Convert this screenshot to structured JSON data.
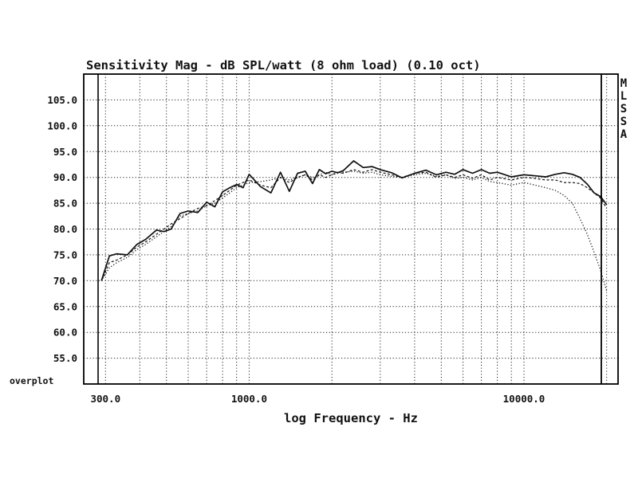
{
  "chart_data": {
    "type": "line",
    "title": "Sensitivity Mag - dB SPL/watt (8 ohm load) (0.10 oct)",
    "xlabel": "log Frequency - Hz",
    "ylabel": "",
    "x_scale": "log",
    "xlim": [
      250,
      22000
    ],
    "ylim": [
      50,
      110
    ],
    "x_ticks": [
      {
        "value": 300,
        "label": "300.0"
      },
      {
        "value": 1000,
        "label": "1000.0"
      },
      {
        "value": 10000,
        "label": "10000.0"
      }
    ],
    "x_grid": [
      300,
      400,
      500,
      600,
      700,
      800,
      900,
      1000,
      2000,
      3000,
      4000,
      5000,
      6000,
      7000,
      8000,
      9000,
      10000,
      20000
    ],
    "y_ticks": [
      {
        "value": 105,
        "label": "105.0"
      },
      {
        "value": 100,
        "label": "100.0"
      },
      {
        "value": 95,
        "label": "95.0"
      },
      {
        "value": 90,
        "label": "90.0"
      },
      {
        "value": 85,
        "label": "85.0"
      },
      {
        "value": 80,
        "label": "80.0"
      },
      {
        "value": 75,
        "label": "75.0"
      },
      {
        "value": 70,
        "label": "70.0"
      },
      {
        "value": 65,
        "label": "65.0"
      },
      {
        "value": 60,
        "label": "60.0"
      },
      {
        "value": 55,
        "label": "55.0"
      }
    ],
    "corner_label": "overplot",
    "right_labels": [
      "M",
      "L",
      "S",
      "S",
      "A"
    ],
    "grid": true,
    "series": [
      {
        "style": "solid",
        "x": [
          290,
          310,
          330,
          360,
          390,
          420,
          460,
          490,
          520,
          560,
          600,
          650,
          700,
          750,
          800,
          850,
          900,
          950,
          1000,
          1100,
          1200,
          1300,
          1400,
          1500,
          1600,
          1700,
          1800,
          1900,
          2000,
          2100,
          2200,
          2400,
          2600,
          2800,
          3000,
          3300,
          3600,
          4000,
          4400,
          4800,
          5200,
          5600,
          6000,
          6500,
          7000,
          7500,
          8000,
          9000,
          10000,
          11000,
          12000,
          13000,
          14000,
          15000,
          16000,
          17000,
          18000,
          19000,
          20000
        ],
        "y": [
          70.0,
          74.8,
          75.2,
          75.0,
          77.0,
          78.0,
          79.8,
          79.5,
          80.0,
          83.0,
          83.5,
          83.2,
          85.2,
          84.3,
          87.2,
          88.0,
          88.6,
          88.0,
          90.6,
          88.2,
          87.0,
          91.0,
          87.3,
          90.8,
          91.2,
          88.8,
          91.5,
          90.7,
          91.2,
          90.9,
          91.3,
          93.2,
          91.9,
          92.1,
          91.5,
          90.9,
          89.9,
          90.8,
          91.4,
          90.5,
          91.0,
          90.6,
          91.5,
          90.8,
          91.5,
          90.8,
          91.0,
          90.1,
          90.5,
          90.3,
          90.1,
          90.6,
          90.9,
          90.6,
          90.0,
          88.7,
          87.0,
          86.3,
          84.7
        ]
      },
      {
        "style": "dotted",
        "x": [
          290,
          310,
          330,
          360,
          390,
          420,
          460,
          490,
          520,
          560,
          600,
          650,
          700,
          750,
          800,
          850,
          900,
          950,
          1000,
          1100,
          1200,
          1300,
          1400,
          1500,
          1600,
          1700,
          1800,
          1900,
          2000,
          2100,
          2200,
          2400,
          2600,
          2800,
          3000,
          3300,
          3600,
          4000,
          4400,
          4800,
          5200,
          5600,
          6000,
          6500,
          7000,
          7500,
          8000,
          9000,
          10000,
          11000,
          12000,
          13000,
          14000,
          15000,
          16000,
          17000,
          18000,
          19000,
          20000
        ],
        "y": [
          70.0,
          72.5,
          73.5,
          74.5,
          76.0,
          77.0,
          78.5,
          79.5,
          80.5,
          82.5,
          83.0,
          83.5,
          84.5,
          85.0,
          86.0,
          87.0,
          88.0,
          88.5,
          89.0,
          89.2,
          89.5,
          90.0,
          89.5,
          90.0,
          90.5,
          90.0,
          90.5,
          91.0,
          90.5,
          90.8,
          91.0,
          91.2,
          90.8,
          91.0,
          90.5,
          90.2,
          90.0,
          90.5,
          90.8,
          90.2,
          90.5,
          89.8,
          90.0,
          89.5,
          90.0,
          89.2,
          89.0,
          88.5,
          89.0,
          88.5,
          88.0,
          87.5,
          86.5,
          85.0,
          82.0,
          79.0,
          75.5,
          72.0,
          68.0
        ]
      },
      {
        "style": "dashed",
        "x": [
          290,
          310,
          330,
          360,
          390,
          420,
          460,
          490,
          520,
          560,
          600,
          650,
          700,
          750,
          800,
          850,
          900,
          950,
          1000,
          1100,
          1200,
          1300,
          1400,
          1500,
          1600,
          1700,
          1800,
          1900,
          2000,
          2100,
          2200,
          2400,
          2600,
          2800,
          3000,
          3300,
          3600,
          4000,
          4400,
          4800,
          5200,
          5600,
          6000,
          6500,
          7000,
          7500,
          8000,
          9000,
          10000,
          11000,
          12000,
          13000,
          14000,
          15000,
          16000,
          17000,
          18000,
          19000,
          20000
        ],
        "y": [
          70.0,
          73.5,
          74.0,
          75.0,
          76.5,
          77.5,
          79.0,
          80.0,
          81.0,
          82.0,
          83.0,
          84.0,
          84.5,
          85.5,
          86.5,
          87.5,
          88.5,
          89.0,
          89.5,
          88.5,
          88.0,
          90.0,
          89.0,
          90.0,
          90.5,
          89.5,
          90.5,
          90.0,
          90.5,
          91.0,
          90.8,
          91.5,
          91.0,
          91.5,
          91.0,
          90.5,
          90.0,
          90.8,
          91.0,
          90.0,
          90.5,
          90.0,
          90.5,
          89.8,
          90.5,
          89.5,
          90.0,
          89.5,
          90.0,
          89.8,
          89.5,
          89.5,
          89.0,
          89.0,
          88.8,
          88.0,
          87.0,
          86.0,
          84.0
        ]
      }
    ]
  }
}
